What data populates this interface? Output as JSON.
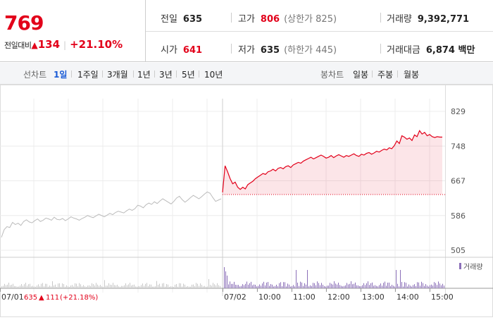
{
  "quote": {
    "price": "769",
    "change_label": "전일대비",
    "change_arrow": "▲",
    "change_value": "134",
    "change_pct": "+21.10%"
  },
  "info": {
    "prev_label": "전일",
    "prev": "635",
    "high_label": "고가",
    "high": "806",
    "upper_limit": "(상한가 825)",
    "volume_label": "거래량",
    "volume": "9,392,771",
    "open_label": "시가",
    "open": "641",
    "low_label": "저가",
    "low": "635",
    "lower_limit": "(하한가 445)",
    "amount_label": "거래대금",
    "amount": "6,874 백만"
  },
  "line_tabs": {
    "label": "선차트",
    "items": [
      "1일",
      "1주일",
      "3개월",
      "1년",
      "3년",
      "5년",
      "10년"
    ],
    "active": 0
  },
  "candle_tabs": {
    "label": "봉차트",
    "items": [
      "일봉",
      "주봉",
      "월봉"
    ]
  },
  "colors": {
    "up": "#e2001a",
    "accent": "#1a5bd6",
    "prev_line": "#bbbbbb",
    "volume": "#8b6fb8"
  },
  "chart_data": {
    "type": "line",
    "y_ticks": [
      "829",
      "748",
      "667",
      "586",
      "505"
    ],
    "ylim": [
      505,
      829
    ],
    "x_ticks": [
      "07/01",
      "07/02",
      "10:00",
      "11:00",
      "12:00",
      "13:00",
      "14:00",
      "15:00"
    ],
    "volume_legend": "거래량",
    "prev_day_legend": {
      "date": "07/01",
      "close": "635",
      "arrow": "▲",
      "change": "111",
      "pct": "(+21.18%)"
    },
    "prev_day_series": [
      535,
      553,
      560,
      558,
      570,
      565,
      568,
      563,
      572,
      576,
      571,
      569,
      574,
      578,
      572,
      575,
      580,
      578,
      575,
      582,
      577,
      576,
      579,
      574,
      578,
      583,
      580,
      578,
      575,
      579,
      582,
      586,
      583,
      581,
      585,
      589,
      586,
      583,
      587,
      591,
      588,
      593,
      596,
      594,
      592,
      597,
      601,
      598,
      602,
      610,
      608,
      604,
      611,
      615,
      612,
      618,
      614,
      620,
      625,
      621,
      617,
      613,
      619,
      627,
      631,
      623,
      617,
      622,
      628,
      633,
      629,
      625,
      630,
      636,
      641,
      638,
      628,
      619,
      622,
      625
    ],
    "today_series": [
      640,
      702,
      688,
      672,
      660,
      664,
      652,
      647,
      652,
      648,
      658,
      662,
      666,
      672,
      676,
      680,
      684,
      682,
      688,
      690,
      694,
      690,
      696,
      698,
      695,
      700,
      702,
      698,
      704,
      707,
      710,
      708,
      713,
      716,
      719,
      722,
      718,
      721,
      724,
      727,
      724,
      720,
      722,
      726,
      721,
      725,
      728,
      725,
      722,
      726,
      724,
      727,
      730,
      726,
      724,
      729,
      727,
      731,
      733,
      729,
      732,
      736,
      734,
      738,
      741,
      739,
      744,
      742,
      749,
      760,
      754,
      772,
      769,
      764,
      767,
      761,
      774,
      770,
      784,
      776,
      780,
      772,
      775,
      770,
      768,
      770,
      769,
      769
    ],
    "base_price": 635
  }
}
